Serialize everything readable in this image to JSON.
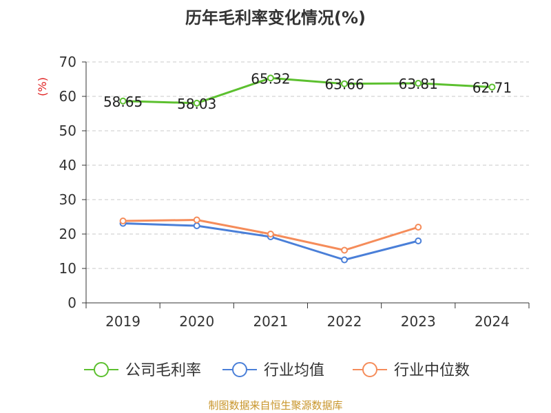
{
  "chart_data": {
    "type": "line",
    "title": "历年毛利率变化情况(%)",
    "ylabel": "(%)",
    "xlabel": "",
    "categories": [
      "2019",
      "2020",
      "2021",
      "2022",
      "2023",
      "2024"
    ],
    "ylim": [
      0,
      70
    ],
    "yticks": [
      0,
      10,
      20,
      30,
      40,
      50,
      60,
      70
    ],
    "grid": true,
    "legend_position": "bottom",
    "series": [
      {
        "name": "公司毛利率",
        "color": "#5cc02f",
        "values": [
          58.65,
          58.03,
          65.32,
          63.66,
          63.81,
          62.71
        ],
        "show_labels": true
      },
      {
        "name": "行业均值",
        "color": "#4a7fd8",
        "values": [
          23.1,
          22.4,
          19.2,
          12.5,
          18.0,
          null
        ],
        "show_labels": false
      },
      {
        "name": "行业中位数",
        "color": "#f58c5a",
        "values": [
          23.8,
          24.1,
          20.0,
          15.3,
          22.0,
          null
        ],
        "show_labels": false
      }
    ]
  },
  "source": "制图数据来自恒生聚源数据库"
}
